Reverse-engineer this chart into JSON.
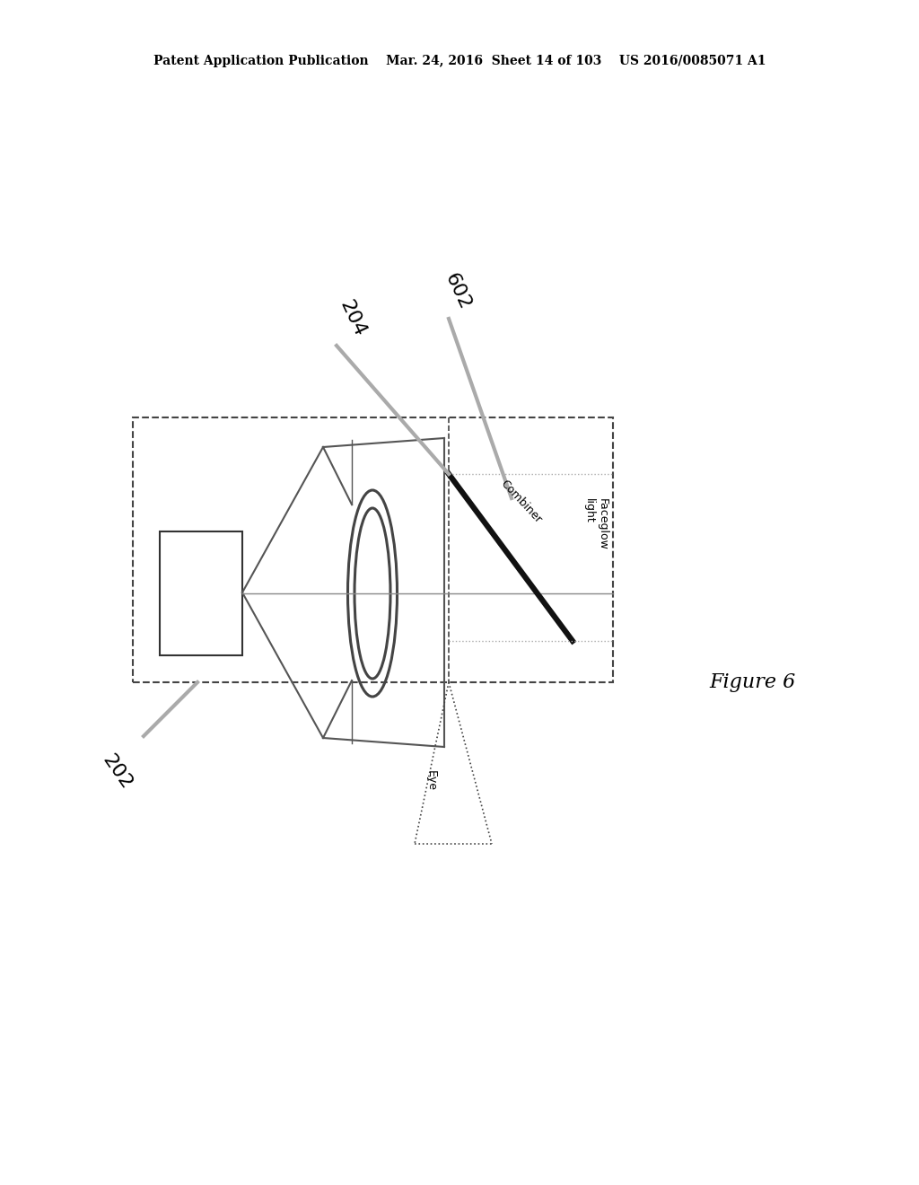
{
  "title_line": "Patent Application Publication    Mar. 24, 2016  Sheet 14 of 103    US 2016/0085071 A1",
  "figure_label": "Figure 6",
  "bg_color": "#ffffff",
  "text_color": "#000000",
  "gray_color": "#999999",
  "label_204": "204",
  "label_602": "602",
  "label_202": "202",
  "label_combiner": "Combiner",
  "label_faceglow": "Faceglow\nlight",
  "label_eye": "Eye",
  "header_fontsize": 10,
  "figure_fontsize": 16,
  "label_fontsize": 16,
  "small_fontsize": 9
}
